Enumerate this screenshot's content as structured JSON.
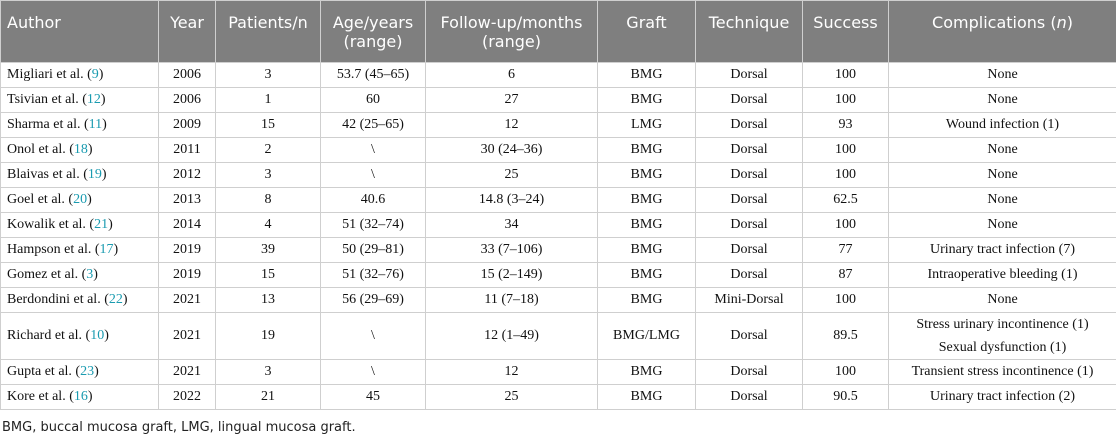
{
  "table": {
    "columns": [
      {
        "lines": [
          "Author"
        ]
      },
      {
        "lines": [
          "Year"
        ]
      },
      {
        "lines": [
          "Patients/n"
        ]
      },
      {
        "lines": [
          "Age/years",
          "(range)"
        ]
      },
      {
        "lines": [
          "Follow-up/months",
          "(range)"
        ]
      },
      {
        "lines": [
          "Graft"
        ]
      },
      {
        "lines": [
          "Technique"
        ]
      },
      {
        "lines": [
          "Success"
        ]
      },
      {
        "segments": [
          "Complications (",
          "n",
          ")"
        ]
      }
    ],
    "rows": [
      [
        [
          "Migliari et al. (",
          "9",
          ")"
        ],
        2006,
        3,
        "53.7 (45–65)",
        6,
        "BMG",
        "Dorsal",
        100,
        "None"
      ],
      [
        [
          "Tsivian et al. (",
          "12",
          ")"
        ],
        2006,
        1,
        60,
        27,
        "BMG",
        "Dorsal",
        100,
        "None"
      ],
      [
        [
          "Sharma et al. (",
          "11",
          ")"
        ],
        2009,
        15,
        "42 (25–65)",
        12,
        "LMG",
        "Dorsal",
        93,
        "Wound infection (1)"
      ],
      [
        [
          "Onol et al. (",
          "18",
          ")"
        ],
        2011,
        2,
        "\\",
        "30 (24–36)",
        "BMG",
        "Dorsal",
        100,
        "None"
      ],
      [
        [
          "Blaivas et al. (",
          "19",
          ")"
        ],
        2012,
        3,
        "\\",
        25,
        "BMG",
        "Dorsal",
        100,
        "None"
      ],
      [
        [
          "Goel et al. (",
          "20",
          ")"
        ],
        2013,
        8,
        40.6,
        "14.8 (3–24)",
        "BMG",
        "Dorsal",
        62.5,
        "None"
      ],
      [
        [
          "Kowalik et al. (",
          "21",
          ")"
        ],
        2014,
        4,
        "51 (32–74)",
        34,
        "BMG",
        "Dorsal",
        100,
        "None"
      ],
      [
        [
          "Hampson et al. (",
          "17",
          ")"
        ],
        2019,
        39,
        "50 (29–81)",
        "33 (7–106)",
        "BMG",
        "Dorsal",
        77,
        "Urinary tract infection (7)"
      ],
      [
        [
          "Gomez et al. (",
          "3",
          ")"
        ],
        2019,
        15,
        "51 (32–76)",
        "15 (2–149)",
        "BMG",
        "Dorsal",
        87,
        "Intraoperative bleeding (1)"
      ],
      [
        [
          "Berdondini et al. (",
          "22",
          ")"
        ],
        2021,
        13,
        "56 (29–69)",
        "11 (7–18)",
        "BMG",
        "Mini-Dorsal",
        100,
        "None"
      ],
      [
        [
          "Richard et al. (",
          "10",
          ")"
        ],
        2021,
        19,
        "\\",
        "12 (1–49)",
        "BMG/LMG",
        "Dorsal",
        89.5,
        [
          "Stress urinary incontinence (1)",
          "Sexual dysfunction (1)"
        ]
      ],
      [
        [
          "Gupta et al. (",
          "23",
          ")"
        ],
        2021,
        3,
        "\\",
        12,
        "BMG",
        "Dorsal",
        100,
        "Transient stress incontinence (1)"
      ],
      [
        [
          "Kore et al. (",
          "16",
          ")"
        ],
        2022,
        21,
        45,
        25,
        "BMG",
        "Dorsal",
        90.5,
        "Urinary tract infection (2)"
      ]
    ],
    "footnote": "BMG, buccal mucosa graft, LMG, lingual mucosa graft."
  }
}
